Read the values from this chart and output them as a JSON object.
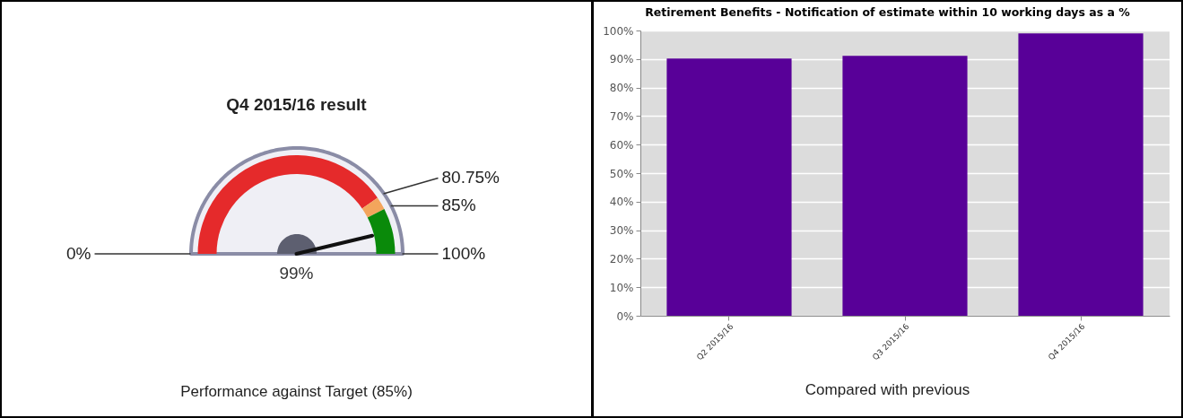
{
  "chart_data": [
    {
      "type": "donut",
      "title": "Q4 2015/16 result",
      "categories": [
        "80.75%",
        "85%",
        "100%"
      ],
      "values": [
        80.75,
        4.25,
        15
      ],
      "colors": [
        "#e52a2b",
        "#f3a55c",
        "#0a8a0a"
      ],
      "needle": "100%",
      "annotations": [
        "0%",
        "99%",
        "Performance against Target (85%)"
      ]
    },
    {
      "type": "bar",
      "title": "Retirement Benefits - Notification of estimate within 10 working days as a %",
      "categories": [
        "Q2 2015/16",
        "Q3 2015/16",
        "Q4 2015/16"
      ],
      "values": [
        90.2,
        91.1,
        99
      ],
      "color": "#580098",
      "ylim": [
        0,
        100
      ],
      "yticks": [
        {
          "value": 0,
          "label": "0%"
        },
        {
          "value": 10,
          "label": "10%"
        },
        {
          "value": 20,
          "label": "20%"
        },
        {
          "value": 30,
          "label": "30%"
        },
        {
          "value": 40,
          "label": "40%"
        },
        {
          "value": 50,
          "label": "50%"
        },
        {
          "value": 60,
          "label": "60%"
        },
        {
          "value": 70,
          "label": "70%"
        },
        {
          "value": 80,
          "label": "80%"
        },
        {
          "value": 90,
          "label": "90%"
        },
        {
          "value": 100,
          "label": "100%"
        }
      ],
      "grid": "y",
      "annotations": [
        "Compared with previous"
      ]
    }
  ]
}
